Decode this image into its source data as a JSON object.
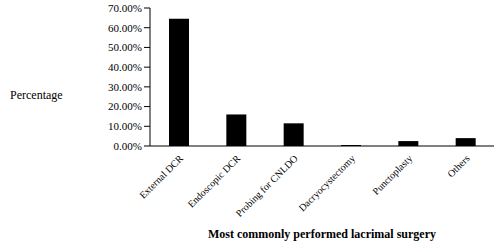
{
  "chart_data": {
    "type": "bar",
    "x_label": "Most commonly performed lacrimal surgery",
    "y_label": "Percentage",
    "categories": [
      "External DCR",
      "Endoscopic DCR",
      "Probing for CNLDO",
      "Dacryocystectomy",
      "Punctoplasty",
      "Others"
    ],
    "values": [
      64.5,
      16,
      11.5,
      0.5,
      2.5,
      4
    ],
    "color": "#000000",
    "ylim": [
      0,
      70
    ],
    "yticks": [
      {
        "value": 0,
        "label": "0.00%"
      },
      {
        "value": 10,
        "label": "10.00%"
      },
      {
        "value": 20,
        "label": "20.00%"
      },
      {
        "value": 30,
        "label": "30.00%"
      },
      {
        "value": 40,
        "label": "40.00%"
      },
      {
        "value": 50,
        "label": "50.00%"
      },
      {
        "value": 60,
        "label": "60.00%"
      },
      {
        "value": 70,
        "label": "70.00%"
      }
    ],
    "grid": false
  }
}
